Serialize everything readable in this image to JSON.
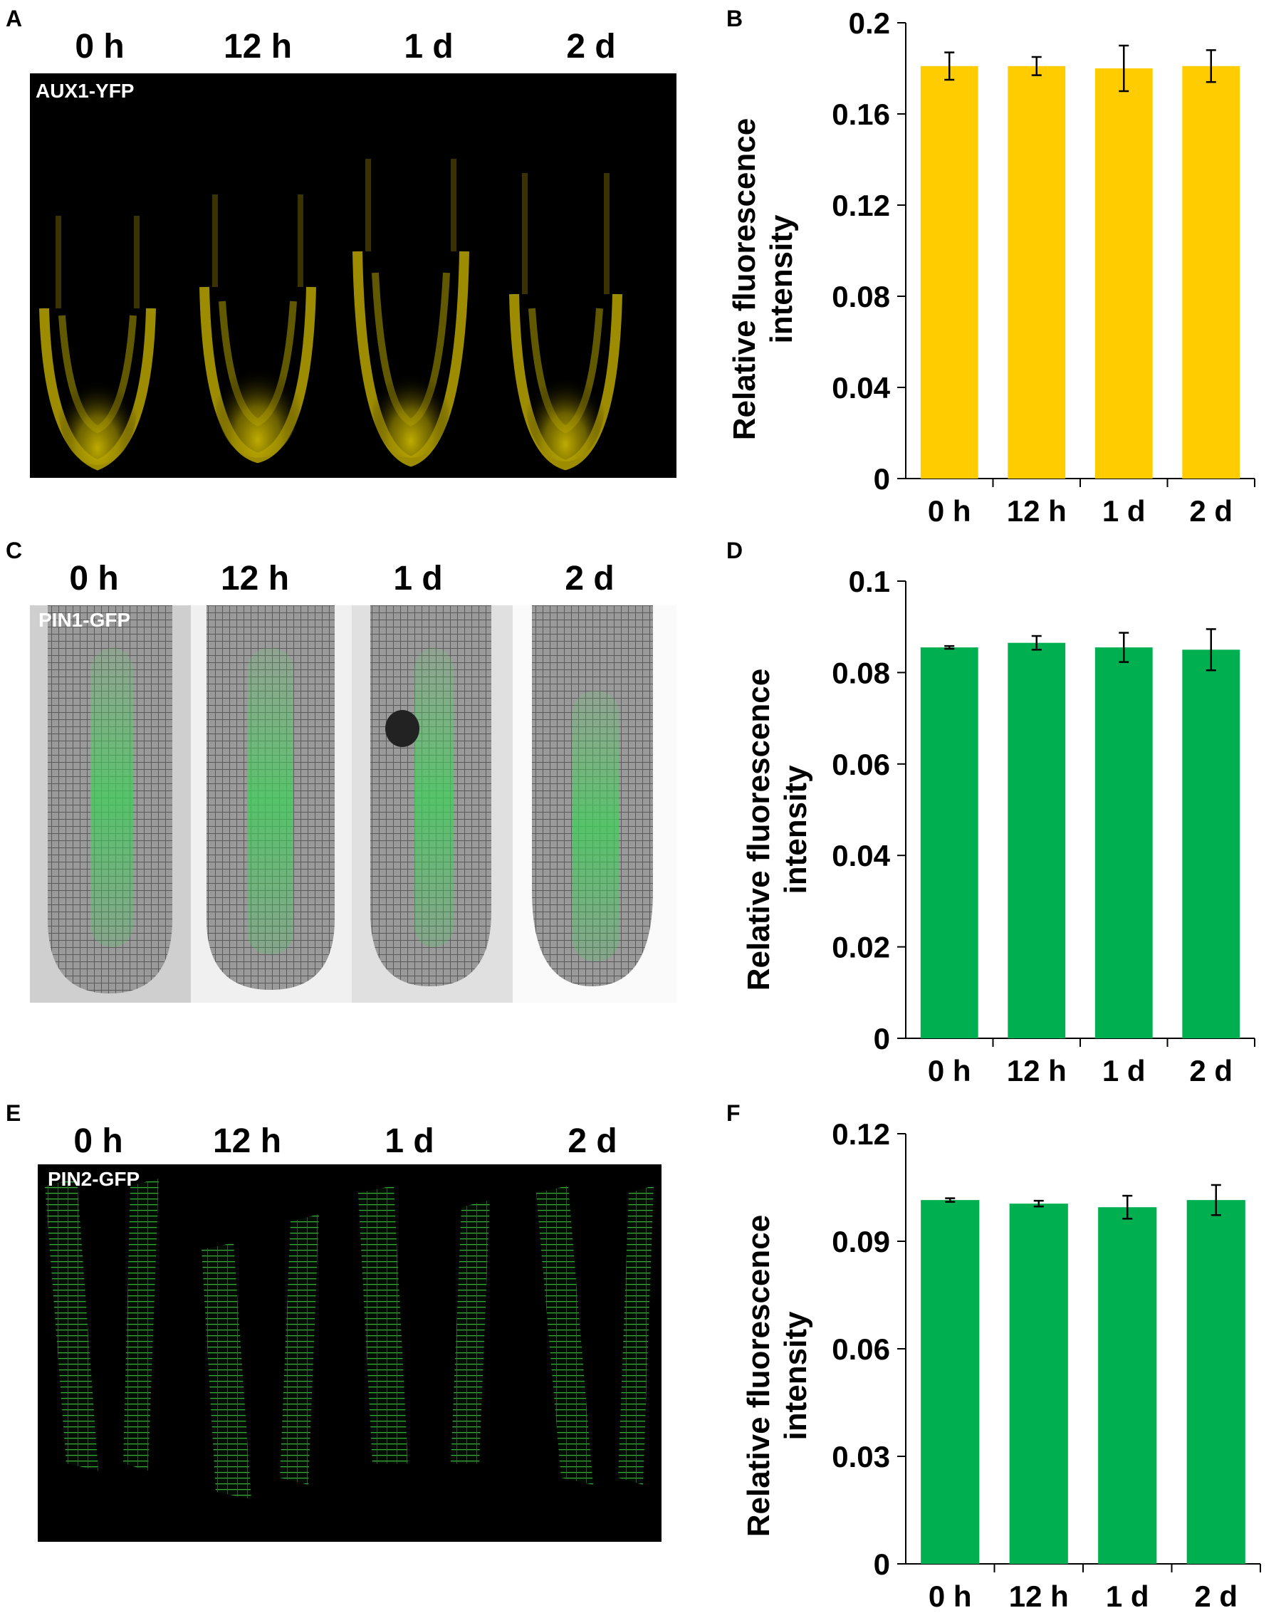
{
  "panels": {
    "A": {
      "letter": "A",
      "reporter": "AUX1-YFP",
      "timepoints": [
        "0 h",
        "12 h",
        "1 d",
        "2 d"
      ]
    },
    "B": {
      "letter": "B"
    },
    "C": {
      "letter": "C",
      "reporter": "PIN1-GFP",
      "timepoints": [
        "0 h",
        "12 h",
        "1 d",
        "2 d"
      ]
    },
    "D": {
      "letter": "D"
    },
    "E": {
      "letter": "E",
      "reporter": "PIN2-GFP",
      "timepoints": [
        "0 h",
        "12 h",
        "1 d",
        "2 d"
      ]
    },
    "F": {
      "letter": "F"
    }
  },
  "colors": {
    "aux1": "#ffcc00",
    "pin": "#00b050",
    "black": "#000000"
  },
  "chart_data": [
    {
      "panel": "B",
      "type": "bar",
      "categories": [
        "0 h",
        "12 h",
        "1 d",
        "2 d"
      ],
      "values": [
        0.181,
        0.181,
        0.18,
        0.181
      ],
      "errors": [
        0.006,
        0.004,
        0.01,
        0.007
      ],
      "ylabel": [
        "Relative fluorescence",
        "intensity"
      ],
      "ylim": [
        0,
        0.2
      ],
      "yticks": [
        "0",
        "0.04",
        "0.08",
        "0.12",
        "0.16",
        "0.2"
      ],
      "color": "#ffcc00"
    },
    {
      "panel": "D",
      "type": "bar",
      "categories": [
        "0 h",
        "12 h",
        "1 d",
        "2 d"
      ],
      "values": [
        0.0855,
        0.0865,
        0.0855,
        0.085
      ],
      "errors": [
        0.0003,
        0.0015,
        0.0032,
        0.0045
      ],
      "ylabel": [
        "Relative fluorescence",
        "intensity"
      ],
      "ylim": [
        0,
        0.1
      ],
      "yticks": [
        "0",
        "0.02",
        "0.04",
        "0.06",
        "0.08",
        "0.1"
      ],
      "color": "#00b050"
    },
    {
      "panel": "F",
      "type": "bar",
      "categories": [
        "0 h",
        "12 h",
        "1 d",
        "2 d"
      ],
      "values": [
        0.1015,
        0.1005,
        0.0995,
        0.1015
      ],
      "errors": [
        0.0005,
        0.0008,
        0.0032,
        0.0042
      ],
      "ylabel": [
        "Relative fluorescence",
        "intensity"
      ],
      "ylim": [
        0,
        0.12
      ],
      "yticks": [
        "0",
        "0.03",
        "0.06",
        "0.09",
        "0.12"
      ],
      "color": "#00b050"
    }
  ]
}
